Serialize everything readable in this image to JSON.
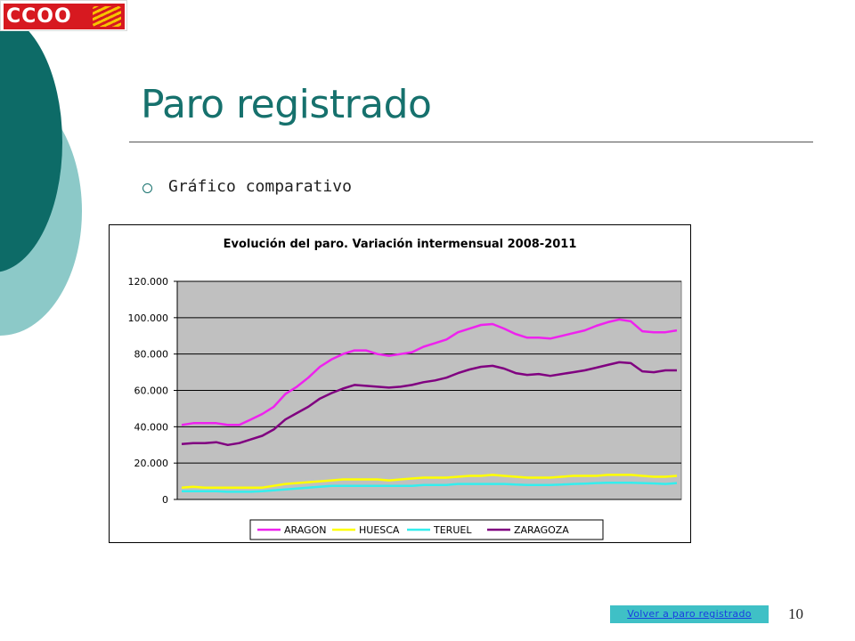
{
  "slide": {
    "title": "Paro registrado",
    "bullet": "Gráfico comparativo",
    "back_link": "Volver a paro registrado",
    "page_number": "10"
  },
  "logo": {
    "text": "CCOO",
    "icon": "aragon-flag-icon"
  },
  "colors": {
    "title": "#16716d",
    "decor_dark": "#0d6b67",
    "decor_light": "#8cc9c8",
    "plot_bg": "#c0c0c0",
    "link_bg": "#3fc0c6"
  },
  "chart_data": {
    "type": "line",
    "title": "Evolución del paro. Variación intermensual 2008-2011",
    "xlabel": "",
    "ylabel": "",
    "ylim": [
      0,
      120000
    ],
    "yticks": [
      "0",
      "20.000",
      "40.000",
      "60.000",
      "80.000",
      "100.000",
      "120.000"
    ],
    "grid": true,
    "legend_position": "bottom",
    "series": [
      {
        "name": "ARAGON",
        "color": "#ee22ee",
        "values": [
          41000,
          42000,
          42000,
          42000,
          41000,
          41000,
          44000,
          47000,
          51000,
          58000,
          62000,
          67000,
          73000,
          77000,
          80000,
          82000,
          82000,
          80000,
          79000,
          80000,
          81000,
          84000,
          86000,
          88000,
          92000,
          94000,
          96000,
          96500,
          94000,
          91000,
          89000,
          89000,
          88500,
          90000,
          91500,
          93000,
          95500,
          97500,
          99000,
          98000,
          92500,
          92000,
          92000,
          93000
        ]
      },
      {
        "name": "HUESCA",
        "color": "#ffff00",
        "values": [
          6500,
          7000,
          6500,
          6500,
          6500,
          6500,
          6500,
          6500,
          7500,
          8500,
          9000,
          9500,
          10000,
          10500,
          11000,
          11000,
          11000,
          11000,
          10500,
          11000,
          11500,
          12000,
          12000,
          12000,
          12500,
          13000,
          13000,
          13500,
          13000,
          12500,
          12000,
          12000,
          12000,
          12500,
          13000,
          13000,
          13000,
          13500,
          13500,
          13500,
          13000,
          12500,
          12500,
          13000
        ]
      },
      {
        "name": "TERUEL",
        "color": "#33eeee",
        "values": [
          4500,
          4500,
          4500,
          4500,
          4200,
          4200,
          4200,
          4500,
          5000,
          5500,
          6000,
          6500,
          7000,
          7500,
          7500,
          7500,
          7500,
          7500,
          7500,
          7500,
          7500,
          8000,
          8000,
          8000,
          8500,
          8500,
          8500,
          8500,
          8500,
          8200,
          8000,
          8000,
          8000,
          8200,
          8500,
          8700,
          9000,
          9200,
          9200,
          9200,
          9000,
          8800,
          8500,
          9000
        ]
      },
      {
        "name": "ZARAGOZA",
        "color": "#800080",
        "values": [
          30500,
          31000,
          31000,
          31500,
          30000,
          31000,
          33000,
          35000,
          38500,
          44000,
          47500,
          51000,
          55500,
          58500,
          61000,
          63000,
          62500,
          62000,
          61500,
          62000,
          63000,
          64500,
          65500,
          67000,
          69500,
          71500,
          73000,
          73500,
          72000,
          69500,
          68500,
          69000,
          68000,
          69000,
          70000,
          71000,
          72500,
          74000,
          75500,
          75000,
          70500,
          70000,
          71000,
          71000
        ]
      }
    ]
  }
}
